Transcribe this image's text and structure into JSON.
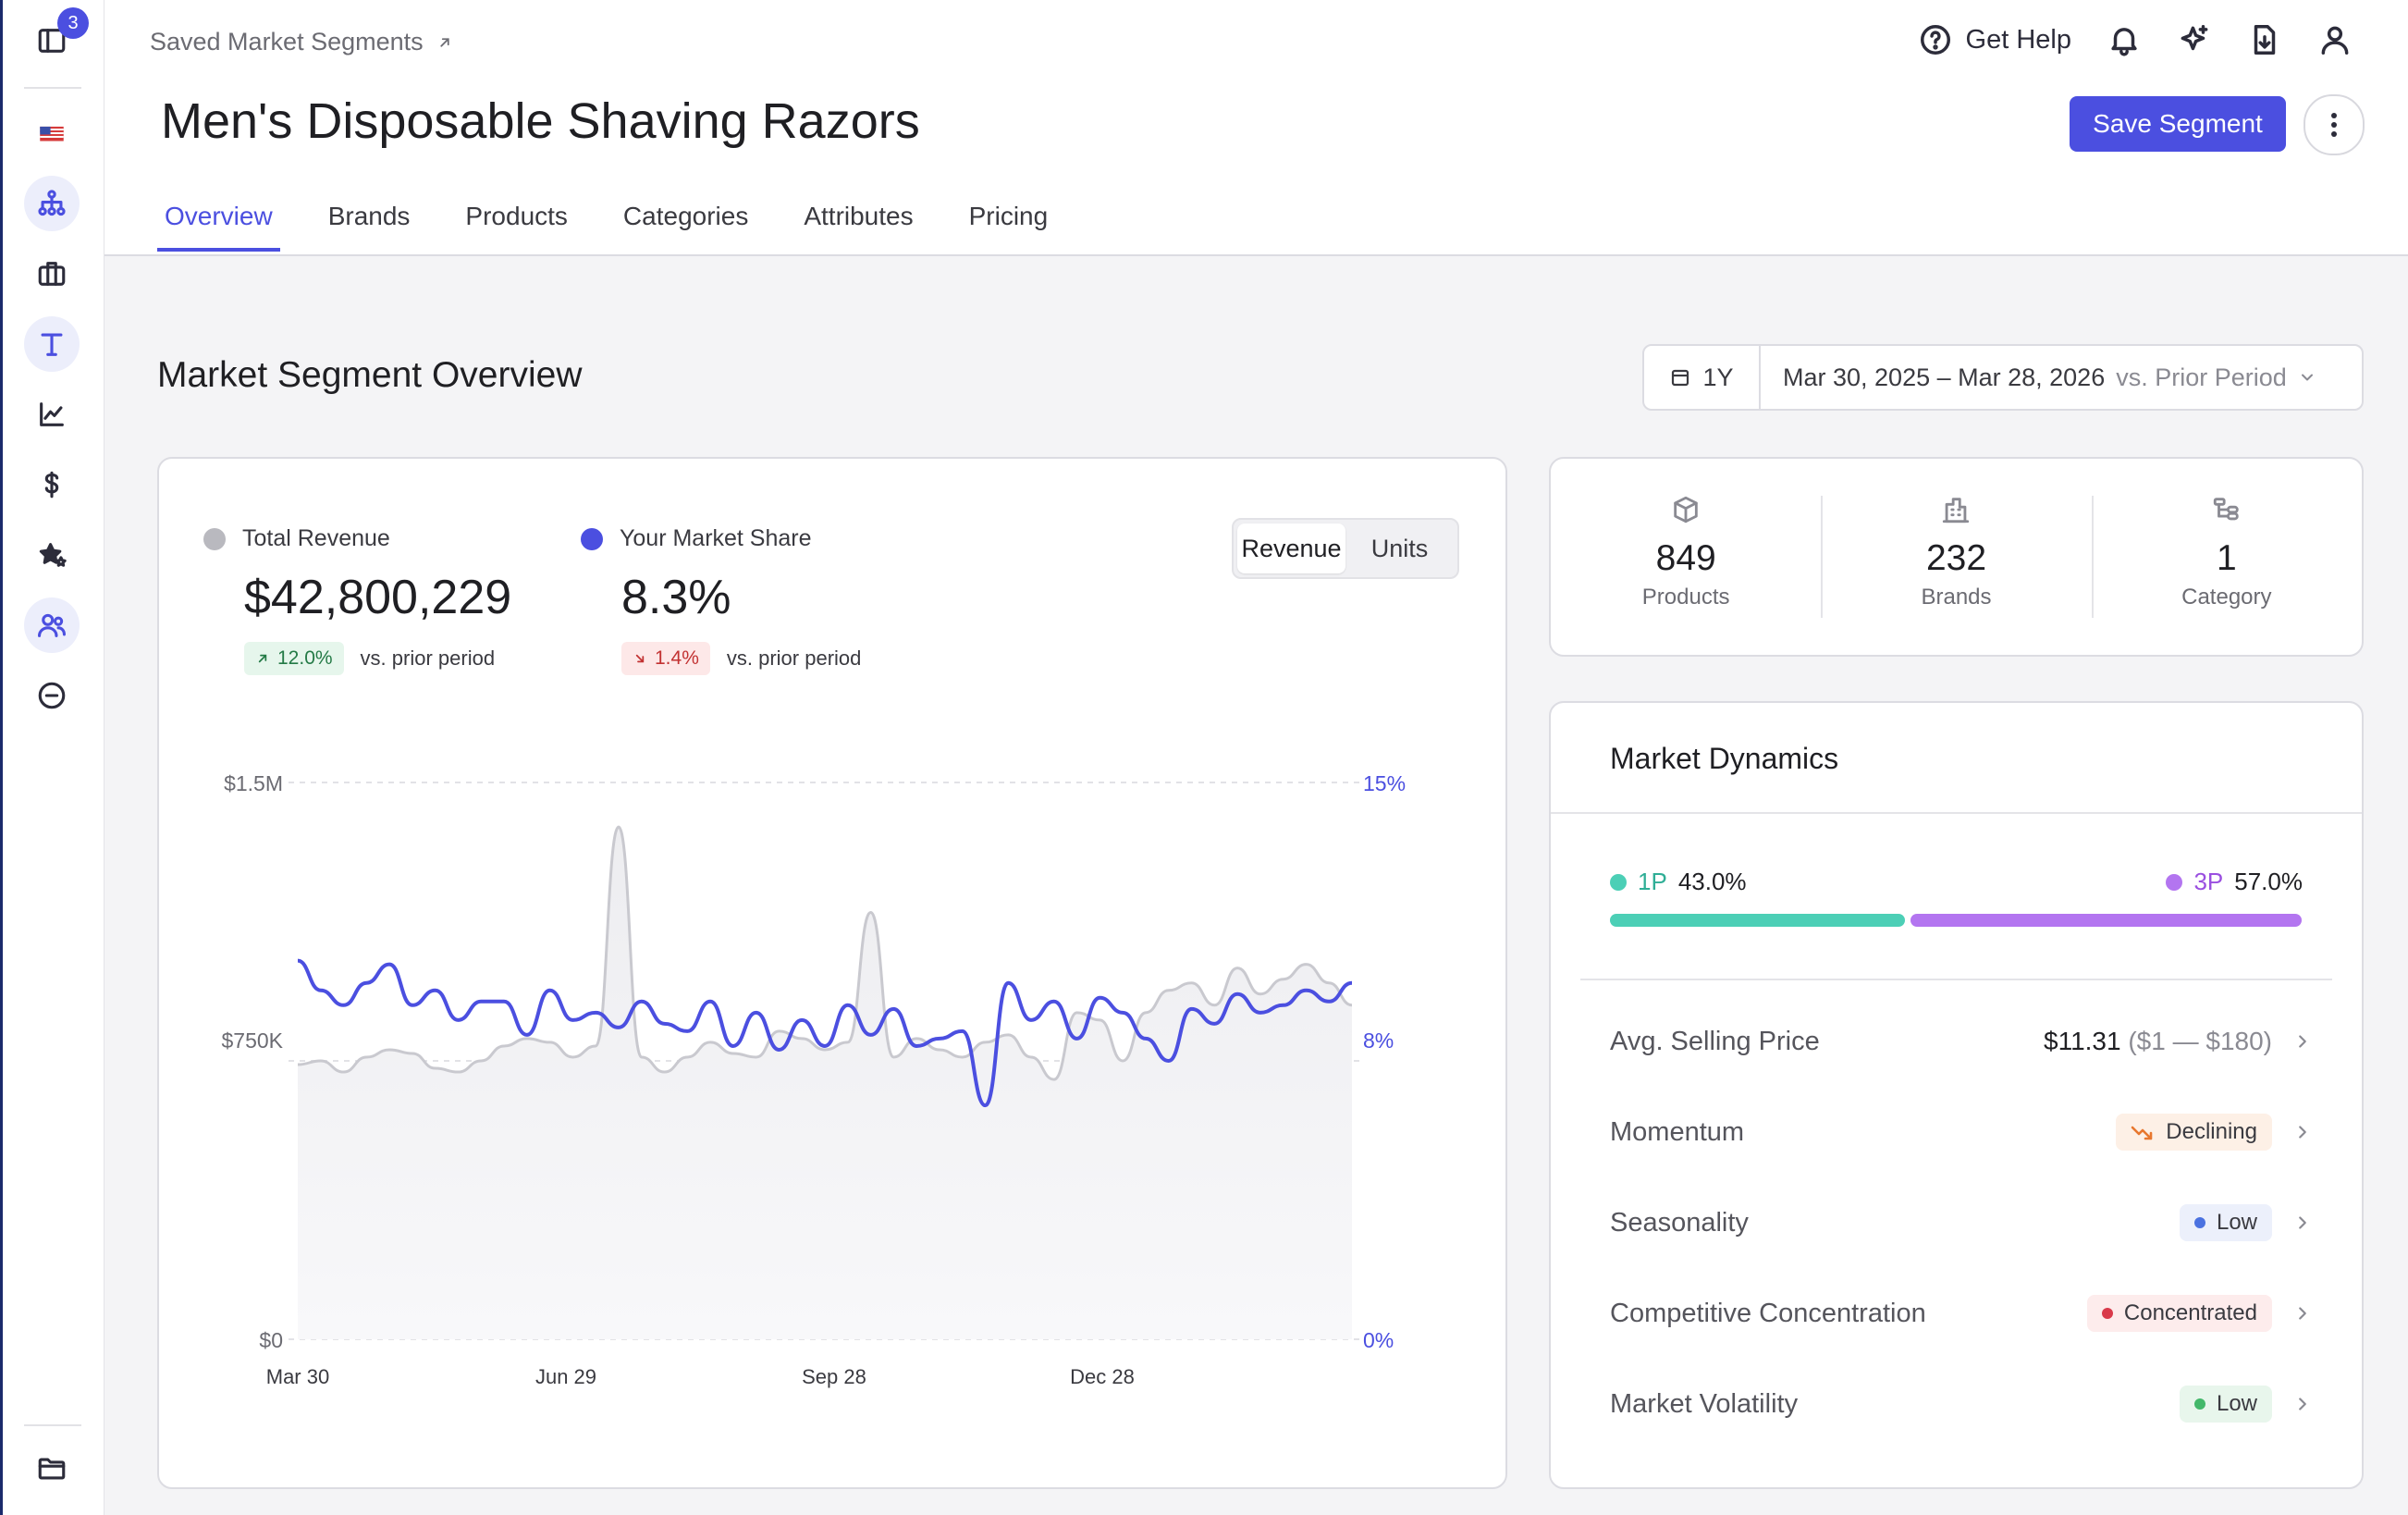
{
  "sidebar": {
    "badge_count": "3",
    "icons": [
      "panel-toggle-icon",
      "us-flag-icon",
      "hierarchy-icon",
      "briefcase-icon",
      "text-icon",
      "trend-chart-icon",
      "dollar-icon",
      "star-sparkle-icon",
      "users-icon",
      "minus-circle-icon",
      "folder-icon"
    ]
  },
  "header": {
    "breadcrumb": "Saved Market Segments",
    "title": "Men's Disposable Shaving Razors",
    "help_label": "Get Help",
    "save_label": "Save Segment"
  },
  "tabs": [
    "Overview",
    "Brands",
    "Products",
    "Categories",
    "Attributes",
    "Pricing"
  ],
  "active_tab": "Overview",
  "overview": {
    "title": "Market Segment Overview",
    "period": "1Y",
    "date_range": "Mar 30, 2025 – Mar 28, 2026",
    "compare": "vs. Prior Period"
  },
  "kpis": {
    "revenue_label": "Total Revenue",
    "revenue_value": "$42,800,229",
    "revenue_delta": "12.0%",
    "share_label": "Your Market Share",
    "share_value": "8.3%",
    "share_delta": "1.4%",
    "vs_text": "vs. prior period"
  },
  "toggle": {
    "revenue": "Revenue",
    "units": "Units"
  },
  "chart_data": {
    "type": "line",
    "x_ticks": [
      "Mar 30",
      "Jun 29",
      "Sep 28",
      "Dec 28"
    ],
    "y_left_ticks": [
      "$1.5M",
      "$750K",
      "$0"
    ],
    "y_right_ticks": [
      "15%",
      "8%",
      "0%"
    ],
    "ylim_left": [
      0,
      1500000
    ],
    "ylim_right": [
      0,
      15
    ],
    "colors": {
      "revenue": "#c9c9cf",
      "share": "#4b4fe0"
    },
    "series": [
      {
        "name": "Total Revenue",
        "axis": "left",
        "values": [
          740000,
          750000,
          720000,
          760000,
          780000,
          770000,
          730000,
          720000,
          750000,
          790000,
          810000,
          800000,
          760000,
          790000,
          1380000,
          760000,
          720000,
          760000,
          800000,
          770000,
          760000,
          830000,
          810000,
          780000,
          800000,
          1150000,
          760000,
          810000,
          780000,
          760000,
          800000,
          820000,
          760000,
          700000,
          880000,
          860000,
          750000,
          880000,
          940000,
          960000,
          900000,
          1000000,
          930000,
          970000,
          1010000,
          960000,
          900000
        ]
      },
      {
        "name": "Your Market Share",
        "axis": "right",
        "values": [
          10.2,
          9.4,
          9.0,
          9.6,
          10.1,
          9.0,
          9.4,
          8.6,
          9.1,
          9.1,
          8.2,
          9.4,
          8.6,
          8.8,
          8.4,
          9.1,
          8.5,
          8.3,
          9.1,
          7.9,
          8.8,
          7.8,
          8.6,
          7.9,
          9.0,
          8.2,
          8.9,
          7.9,
          8.1,
          8.3,
          6.3,
          9.6,
          8.6,
          9.1,
          8.1,
          9.2,
          8.8,
          8.1,
          7.5,
          8.9,
          8.5,
          9.3,
          8.8,
          9.0,
          9.4,
          9.1,
          9.6
        ]
      }
    ]
  },
  "counts": [
    {
      "value": "849",
      "label": "Products",
      "icon": "box-icon"
    },
    {
      "value": "232",
      "label": "Brands",
      "icon": "building-icon"
    },
    {
      "value": "1",
      "label": "Category",
      "icon": "category-tree-icon"
    }
  ],
  "dynamics": {
    "title": "Market Dynamics",
    "first_party_label": "1P",
    "first_party_value": "43.0%",
    "first_party_share": 0.43,
    "third_party_label": "3P",
    "third_party_value": "57.0%",
    "third_party_share": 0.57,
    "colors": {
      "first_party": "#4ccfb6",
      "third_party": "#b375f0"
    },
    "metrics": [
      {
        "label": "Avg. Selling Price",
        "value": "$11.31",
        "range": "($1 — $180)"
      },
      {
        "label": "Momentum",
        "chip": "Declining",
        "chip_bg": "#fdf0e6",
        "dot_color": "#e8772e"
      },
      {
        "label": "Seasonality",
        "chip": "Low",
        "chip_bg": "#ecf0fb",
        "dot_color": "#4b72e0"
      },
      {
        "label": "Competitive Concentration",
        "chip": "Concentrated",
        "chip_bg": "#fdecec",
        "dot_color": "#d93a4a"
      },
      {
        "label": "Market Volatility",
        "chip": "Low",
        "chip_bg": "#e8f6ec",
        "dot_color": "#43b86a"
      }
    ]
  }
}
